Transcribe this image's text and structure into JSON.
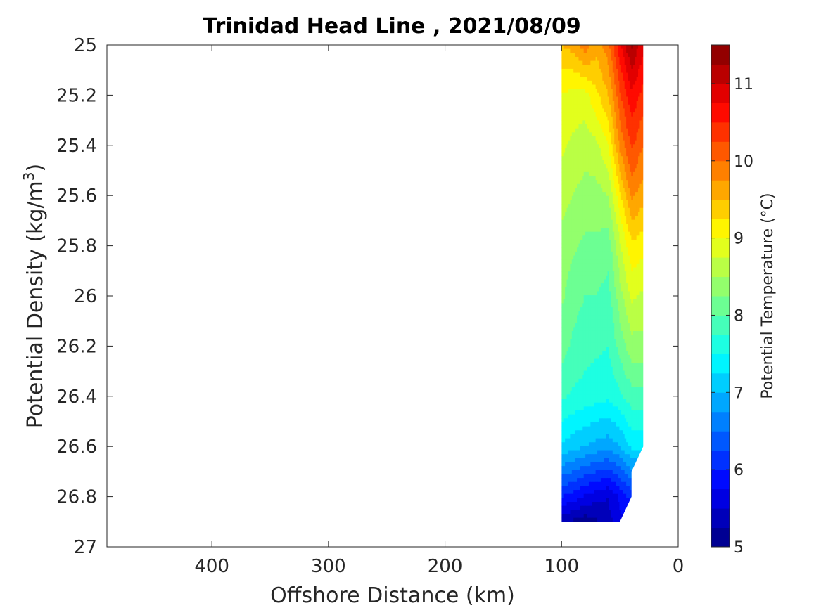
{
  "chart_data": {
    "type": "contour",
    "title": "Trinidad Head Line , 2021/08/09",
    "xlabel": "Offshore Distance (km)",
    "ylabel_base": "Potential Density (kg/m",
    "ylabel_sup": "3",
    "ylabel_close": ")",
    "colorbar_label": "Potential Temperature (°C)",
    "xlim": [
      490,
      0
    ],
    "ylim": [
      25,
      27
    ],
    "x_reversed": true,
    "y_reversed": true,
    "xticks": [
      400,
      300,
      200,
      100,
      0
    ],
    "xtick_labels": [
      "400",
      "300",
      "200",
      "100",
      "0"
    ],
    "yticks": [
      25,
      25.2,
      25.4,
      25.6,
      25.8,
      26,
      26.2,
      26.4,
      26.6,
      26.8,
      27
    ],
    "ytick_labels": [
      "25",
      "25.2",
      "25.4",
      "25.6",
      "25.8",
      "26",
      "26.2",
      "26.4",
      "26.6",
      "26.8",
      "27"
    ],
    "colorbar_range": [
      5,
      11.5
    ],
    "colorbar_ticks": [
      5,
      6,
      7,
      8,
      9,
      10,
      11
    ],
    "colorbar_tick_labels": [
      "5",
      "6",
      "7",
      "8",
      "9",
      "10",
      "11"
    ],
    "contour_step": 0.25,
    "colormap": "jet",
    "stations_km": [
      100,
      90,
      80,
      70,
      60,
      50,
      40,
      30
    ],
    "density_levels": [
      25.0,
      25.2,
      25.4,
      25.6,
      25.8,
      26.0,
      26.2,
      26.4,
      26.6,
      26.8,
      26.9
    ],
    "temperature_grid": [
      [
        9.5,
        9.6,
        9.9,
        9.6,
        9.9,
        10.7,
        11.3,
        10.8
      ],
      [
        9.0,
        8.9,
        8.9,
        9.2,
        9.5,
        10.2,
        10.7,
        10.4
      ],
      [
        8.8,
        8.7,
        8.6,
        8.7,
        9.0,
        9.8,
        10.3,
        10.0
      ],
      [
        8.6,
        8.5,
        8.4,
        8.4,
        8.5,
        9.2,
        9.8,
        9.6
      ],
      [
        8.4,
        8.3,
        8.2,
        8.2,
        8.1,
        8.7,
        9.2,
        9.1
      ],
      [
        8.3,
        8.1,
        8.0,
        8.0,
        7.9,
        8.4,
        8.8,
        8.7
      ],
      [
        8.1,
        7.95,
        7.85,
        7.8,
        7.75,
        8.1,
        8.4,
        8.4
      ],
      [
        7.8,
        7.7,
        7.65,
        7.6,
        7.55,
        7.7,
        7.9,
        7.9
      ],
      [
        7.2,
        7.1,
        7.0,
        6.9,
        6.85,
        7.0,
        7.3,
        7.3
      ],
      [
        6.0,
        5.9,
        5.7,
        5.6,
        5.5,
        5.8,
        6.1,
        null
      ],
      [
        5.3,
        5.2,
        5.1,
        5.2,
        5.4,
        5.7,
        null,
        null
      ]
    ],
    "data_mask_outline_km": [
      [
        100,
        25.0
      ],
      [
        30,
        25.0
      ],
      [
        30,
        26.6
      ],
      [
        40,
        26.7
      ],
      [
        40,
        26.8
      ],
      [
        50,
        26.9
      ],
      [
        100,
        26.9
      ]
    ]
  }
}
